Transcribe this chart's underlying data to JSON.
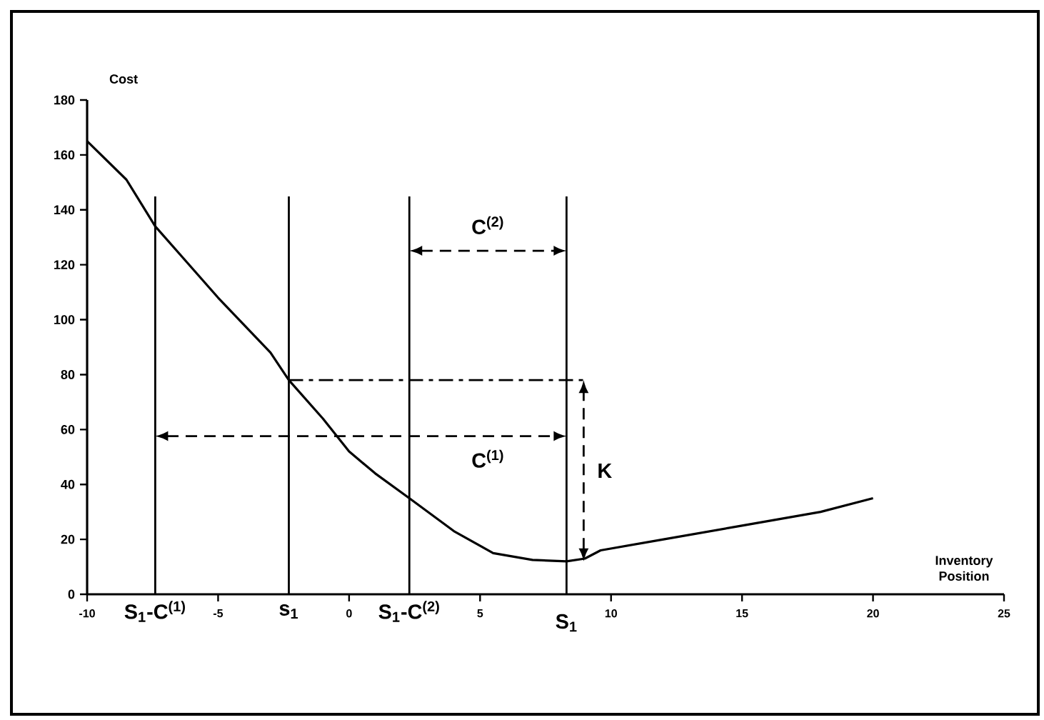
{
  "chart_data": {
    "type": "line",
    "xlabel": "Inventory Position",
    "ylabel": "Cost",
    "x": [
      -10,
      -8.5,
      -7.4,
      -5,
      -3,
      -2.3,
      -1,
      0,
      1,
      2.3,
      4,
      5.5,
      7,
      8.3,
      9,
      9.6,
      12,
      15,
      18,
      20
    ],
    "series": [
      {
        "color": "#000000",
        "values": [
          165,
          151,
          134,
          108,
          88,
          78,
          64,
          52,
          44,
          35,
          23,
          15,
          12.5,
          12,
          13,
          16,
          20,
          25,
          30,
          35
        ]
      }
    ],
    "xlim": [
      -10,
      25
    ],
    "xticks": [
      -10,
      -5,
      0,
      5,
      10,
      15,
      20,
      25
    ],
    "ylim": [
      0,
      180
    ],
    "yticks": [
      0,
      20,
      40,
      60,
      80,
      100,
      120,
      140,
      160,
      180
    ],
    "ref_lines": [
      {
        "axis": "x",
        "value": -7.4,
        "label": "S$_{1}$-C$^{(1)}$"
      },
      {
        "axis": "x",
        "value": -2.3,
        "label": "s$_{1}$"
      },
      {
        "axis": "x",
        "value": 2.3,
        "label": "S$_{1}$-C$^{(2)}$"
      },
      {
        "axis": "x",
        "value": 8.3,
        "label": "S$_{1}$"
      },
      {
        "axis": "y",
        "value": 78,
        "line_style": "dashdot"
      }
    ],
    "annotations": [
      "C$^{(2)}$",
      "C$^{(1)}$",
      "K"
    ],
    "grid": false,
    "marker": "none",
    "line_style": "solid"
  }
}
